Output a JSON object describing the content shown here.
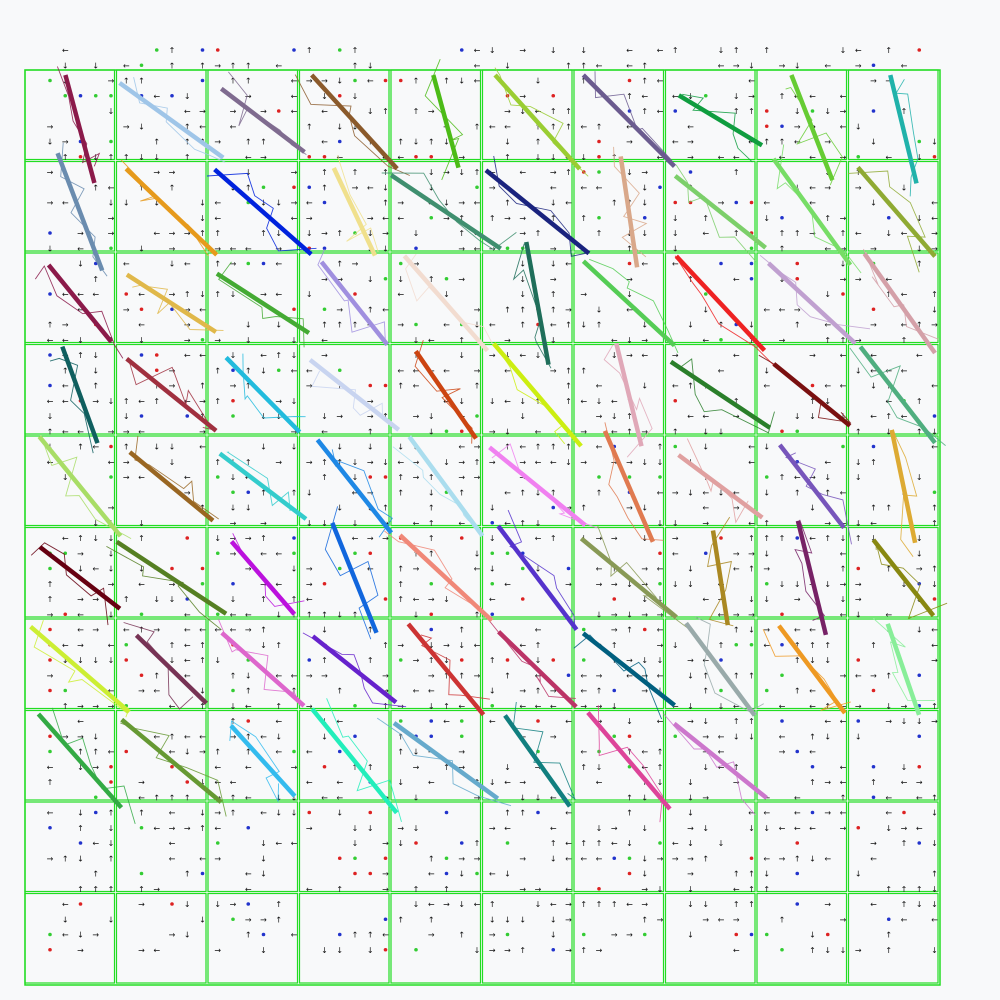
{
  "canvas": {
    "background_color": "#f8f9fa",
    "grid_line_color": "#22dd22",
    "cell_fill_color": "#f8f9fa",
    "grid_rows": 10,
    "grid_columns": 10,
    "grid_visible": true
  },
  "glyph_field": {
    "arrow_symbols": [
      "↑",
      "↓",
      "←",
      "→"
    ],
    "dot_colors": {
      "red": "#dd2222",
      "blue": "#2233cc",
      "green": "#33cc33"
    }
  },
  "strokes": [
    {
      "color": "#8b1a4a"
    },
    {
      "color": "#9fc5e8"
    },
    {
      "color": "#7f6b8f"
    },
    {
      "color": "#8b5a2b"
    },
    {
      "color": "#4cbb17"
    },
    {
      "color": "#9acd32"
    },
    {
      "color": "#6b5b8f"
    },
    {
      "color": "#0f9d3f"
    },
    {
      "color": "#66cc33"
    },
    {
      "color": "#20b2aa"
    },
    {
      "color": "#6a8caf"
    },
    {
      "color": "#e69a1c"
    },
    {
      "color": "#0022dd"
    },
    {
      "color": "#f0e08c"
    },
    {
      "color": "#3f8f6f"
    },
    {
      "color": "#1a237e"
    },
    {
      "color": "#d9a88a"
    },
    {
      "color": "#7ccf6a"
    },
    {
      "color": "#77dd66"
    },
    {
      "color": "#8faa33"
    },
    {
      "color": "#8b1a4a"
    },
    {
      "color": "#e0b84a"
    },
    {
      "color": "#44aa33"
    },
    {
      "color": "#a08fdf"
    },
    {
      "color": "#f2dcd0"
    },
    {
      "color": "#1f6e5a"
    },
    {
      "color": "#55cc55"
    },
    {
      "color": "#ee2222"
    },
    {
      "color": "#c0a0d0"
    },
    {
      "color": "#d4a0a8"
    },
    {
      "color": "#0f5f5f"
    },
    {
      "color": "#a0303f"
    },
    {
      "color": "#22bbdd"
    },
    {
      "color": "#c8d4f0"
    },
    {
      "color": "#cc4411"
    },
    {
      "color": "#ccee11"
    },
    {
      "color": "#e0a8b8"
    },
    {
      "color": "#2a7f2a"
    },
    {
      "color": "#7a1010"
    },
    {
      "color": "#4fae7f"
    },
    {
      "color": "#a8dd66"
    },
    {
      "color": "#996622"
    },
    {
      "color": "#33cccc"
    },
    {
      "color": "#1e88e5"
    },
    {
      "color": "#aaddee"
    },
    {
      "color": "#f080f0"
    },
    {
      "color": "#e07a50"
    },
    {
      "color": "#e0a0a0"
    },
    {
      "color": "#7755bb"
    },
    {
      "color": "#ddaa33"
    },
    {
      "color": "#660011"
    },
    {
      "color": "#557f22"
    },
    {
      "color": "#bb11dd"
    },
    {
      "color": "#1166dd"
    },
    {
      "color": "#f08878"
    },
    {
      "color": "#5533cc"
    },
    {
      "color": "#889955"
    },
    {
      "color": "#aa8822"
    },
    {
      "color": "#772266"
    },
    {
      "color": "#888811"
    },
    {
      "color": "#ccee33"
    },
    {
      "color": "#773355"
    },
    {
      "color": "#dd66cc"
    },
    {
      "color": "#6622cc"
    },
    {
      "color": "#cc3333"
    },
    {
      "color": "#bb3366"
    },
    {
      "color": "#005f7f"
    },
    {
      "color": "#99aaaa"
    },
    {
      "color": "#ee9922"
    },
    {
      "color": "#88ee99"
    },
    {
      "color": "#33aa44"
    },
    {
      "color": "#669933"
    },
    {
      "color": "#33bbee"
    },
    {
      "color": "#22eebb"
    },
    {
      "color": "#66aacc"
    },
    {
      "color": "#117f7f"
    },
    {
      "color": "#dd4499"
    },
    {
      "color": "#cc77cc"
    }
  ]
}
